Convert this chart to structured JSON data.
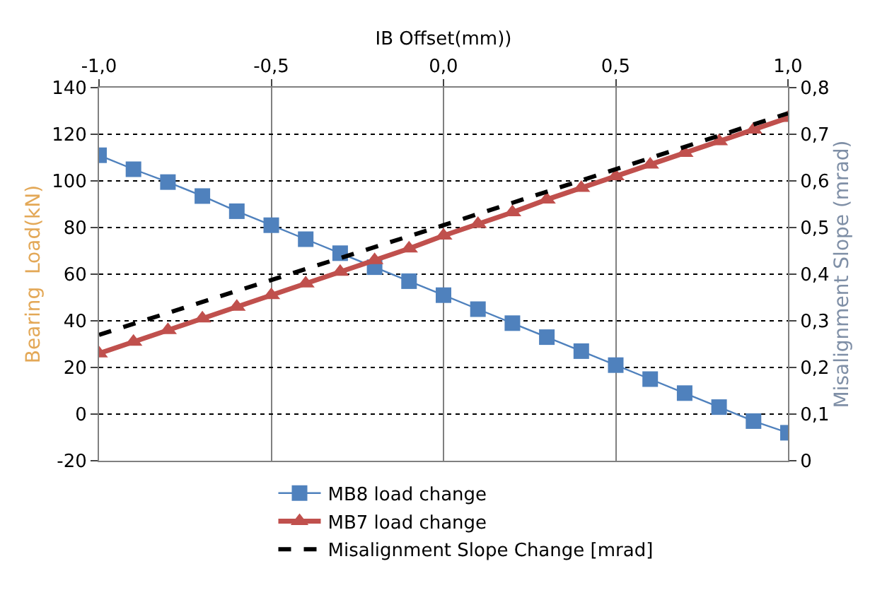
{
  "chart_data": {
    "type": "line",
    "xlabel": "IB Offset(mm))",
    "ylabel": "Bearing  Load(kN)",
    "y2label": "Misalignment Slope (mrad)",
    "x": [
      -1.0,
      -0.9,
      -0.8,
      -0.7,
      -0.6,
      -0.5,
      -0.4,
      -0.3,
      -0.2,
      -0.1,
      0.0,
      0.1,
      0.2,
      0.3,
      0.4,
      0.5,
      0.6,
      0.7,
      0.8,
      0.9,
      1.0
    ],
    "series": [
      {
        "name": "MB8 load change",
        "color": "#4f81bd",
        "marker": "square",
        "values": [
          111,
          105,
          99.5,
          93.5,
          87,
          81,
          75,
          69,
          63,
          57,
          51,
          45,
          39,
          33,
          27,
          21,
          15,
          9,
          3,
          -3,
          -8
        ]
      },
      {
        "name": "MB7 load change",
        "color": "#c0504d",
        "marker": "triangle",
        "values": [
          26,
          31,
          36,
          41,
          46,
          51,
          56,
          61,
          66,
          71,
          76.5,
          81.5,
          86.5,
          92,
          97,
          102,
          107,
          112,
          117,
          122,
          127
        ]
      },
      {
        "name": "Misalignment Slope Change [mrad]",
        "color": "#000000",
        "marker": "none",
        "line_style": "dashed",
        "axis": "y2",
        "x": [
          -1.0,
          0.0,
          1.0
        ],
        "values": [
          0.27,
          0.505,
          0.745
        ]
      }
    ],
    "xlim": [
      -1.0,
      1.0
    ],
    "xticks": [
      {
        "value": -1.0,
        "label": "-1,0"
      },
      {
        "value": -0.5,
        "label": "-0,5"
      },
      {
        "value": 0.0,
        "label": "0,0"
      },
      {
        "value": 0.5,
        "label": "0,5"
      },
      {
        "value": 1.0,
        "label": "1,0"
      }
    ],
    "ylim": [
      -20,
      140
    ],
    "yticks": [
      -20,
      0,
      20,
      40,
      60,
      80,
      100,
      120,
      140
    ],
    "y2lim": [
      0,
      0.8
    ],
    "y2ticks": [
      0,
      {
        "value": 0.1,
        "label": "0,1"
      },
      {
        "value": 0.2,
        "label": "0,2"
      },
      {
        "value": 0.3,
        "label": "0,3"
      },
      {
        "value": 0.4,
        "label": "0,4"
      },
      {
        "value": 0.5,
        "label": "0,5"
      },
      {
        "value": 0.6,
        "label": "0,6"
      },
      {
        "value": 0.7,
        "label": "0,7"
      },
      {
        "value": 0.8,
        "label": "0,8"
      }
    ],
    "grid": true,
    "legend": "bottom"
  }
}
